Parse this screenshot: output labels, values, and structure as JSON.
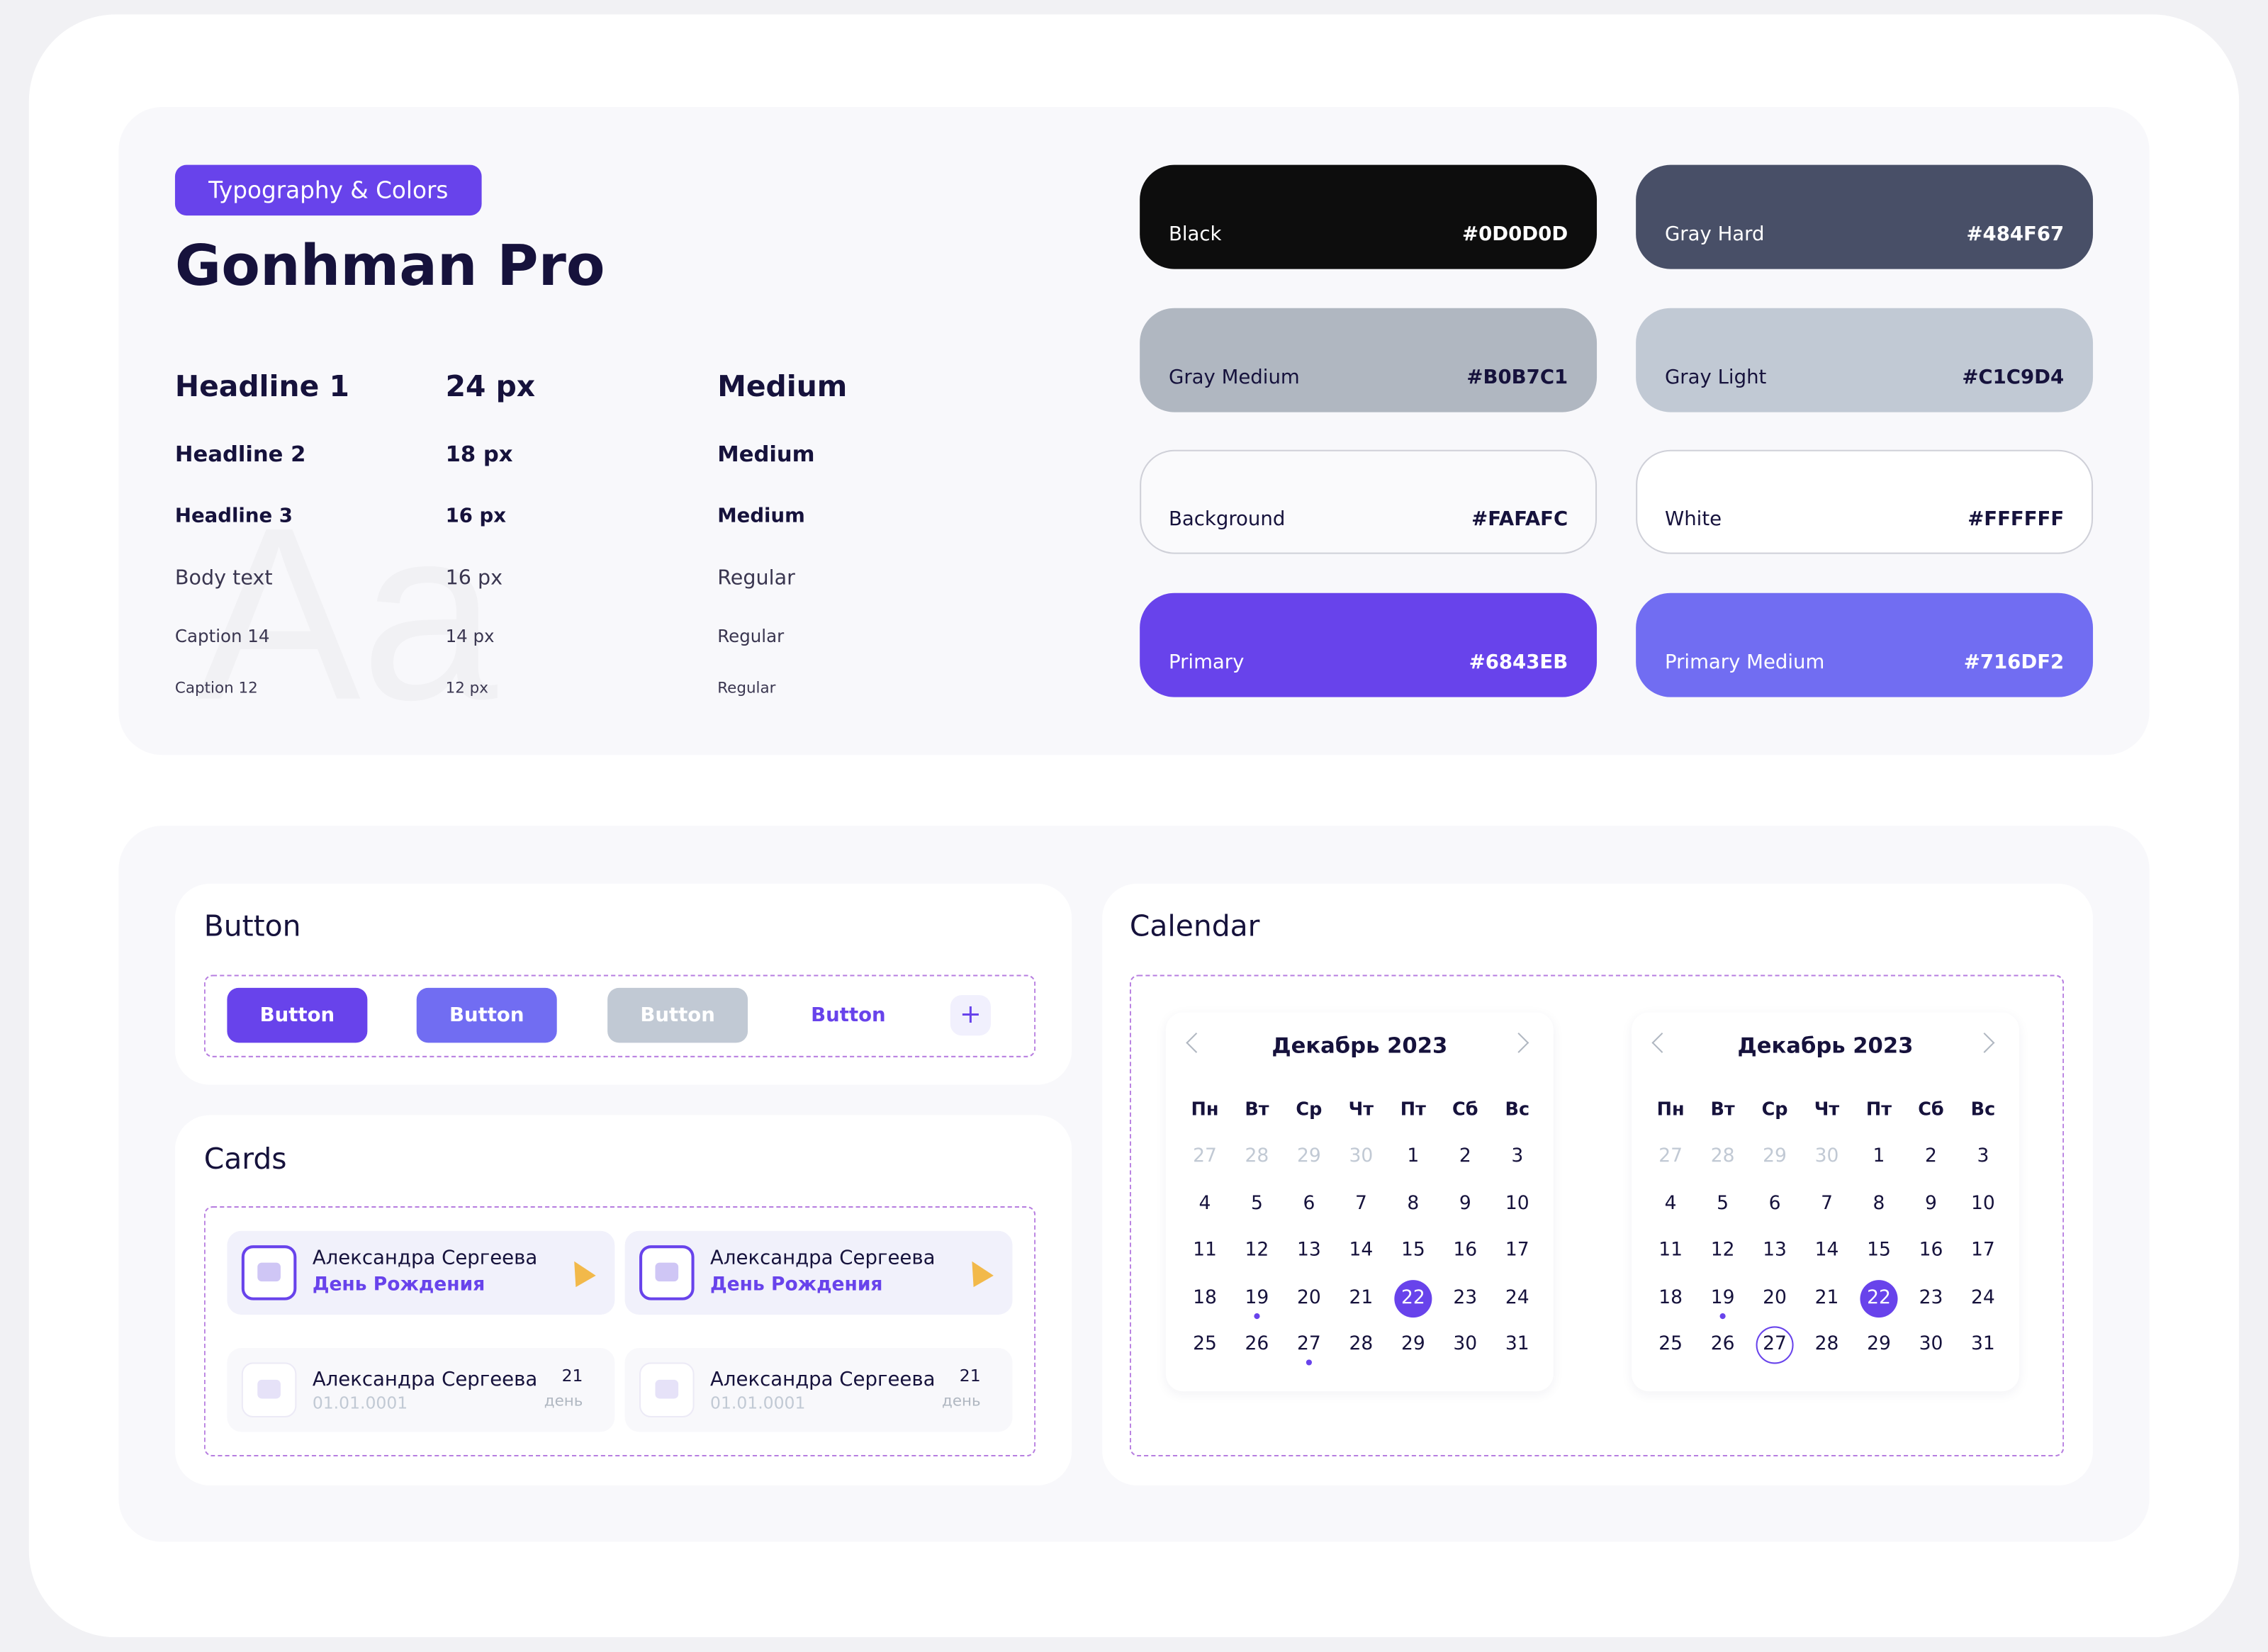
{
  "tag": "Typography & Colors",
  "font_name": "Gonhman Pro",
  "watermark": "Aa",
  "typography": [
    {
      "style": "Headline 1",
      "size": "24 px",
      "weight": "Medium"
    },
    {
      "style": "Headline 2",
      "size": "18 px",
      "weight": "Medium"
    },
    {
      "style": "Headline 3",
      "size": "16 px",
      "weight": "Medium"
    },
    {
      "style": "Body text",
      "size": "16 px",
      "weight": "Regular"
    },
    {
      "style": "Caption 14",
      "size": "14 px",
      "weight": "Regular"
    },
    {
      "style": "Caption 12",
      "size": "12 px",
      "weight": "Regular"
    }
  ],
  "colors": [
    {
      "name": "Black",
      "hex": "#0D0D0D"
    },
    {
      "name": "Gray Hard",
      "hex": "#484F67"
    },
    {
      "name": "Gray Medium",
      "hex": "#B0B7C1"
    },
    {
      "name": "Gray Light",
      "hex": "#C1C9D4"
    },
    {
      "name": "Background",
      "hex": "#FAFAFC"
    },
    {
      "name": "White",
      "hex": "#FFFFFF"
    },
    {
      "name": "Primary",
      "hex": "#6843EB"
    },
    {
      "name": "Primary Medium",
      "hex": "#716DF2"
    }
  ],
  "button_section": {
    "title": "Button",
    "buttons": [
      "Button",
      "Button",
      "Button",
      "Button"
    ],
    "add": "+"
  },
  "cards_section": {
    "title": "Cards",
    "cards": [
      {
        "name": "Александра Сергеева",
        "subtitle": "День Рождения"
      },
      {
        "name": "Александра Сергеева",
        "subtitle": "День Рождения"
      },
      {
        "name": "Александра Сергеева",
        "date": "01.01.0001",
        "count": "21",
        "unit": "день"
      },
      {
        "name": "Александра Сергеева",
        "date": "01.01.0001",
        "count": "21",
        "unit": "день"
      }
    ]
  },
  "calendar_section": {
    "title": "Calendar",
    "calendars": [
      {
        "month": "Декабрь 2023",
        "weekdays": [
          "Пн",
          "Вт",
          "Ср",
          "Чт",
          "Пт",
          "Сб",
          "Вс"
        ],
        "leading_days": [
          27,
          28,
          29,
          30
        ],
        "days": [
          1,
          2,
          3,
          4,
          5,
          6,
          7,
          8,
          9,
          10,
          11,
          12,
          13,
          14,
          15,
          16,
          17,
          18,
          19,
          20,
          21,
          22,
          23,
          24,
          25,
          26,
          27,
          28,
          29,
          30,
          31
        ],
        "selected": 22,
        "marked": [
          19,
          27
        ]
      },
      {
        "month": "Декабрь 2023",
        "weekdays": [
          "Пн",
          "Вт",
          "Ср",
          "Чт",
          "Пт",
          "Сб",
          "Вс"
        ],
        "leading_days": [
          27,
          28,
          29,
          30
        ],
        "days": [
          1,
          2,
          3,
          4,
          5,
          6,
          7,
          8,
          9,
          10,
          11,
          12,
          13,
          14,
          15,
          16,
          17,
          18,
          19,
          20,
          21,
          22,
          23,
          24,
          25,
          26,
          27,
          28,
          29,
          30,
          31
        ],
        "selected": 22,
        "marked": [
          19
        ],
        "outlined": 27
      }
    ]
  }
}
